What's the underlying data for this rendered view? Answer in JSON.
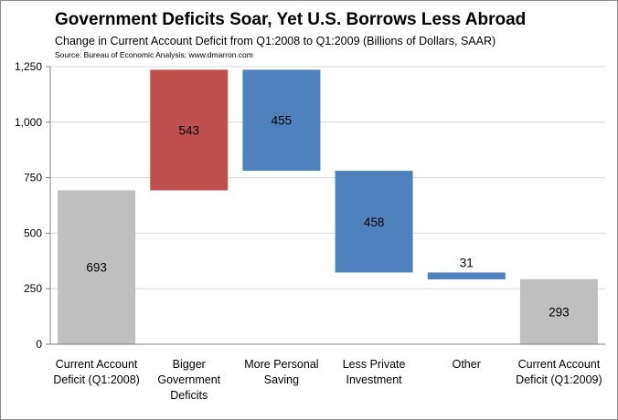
{
  "chart_data": {
    "type": "waterfall",
    "title": "Government Deficits Soar, Yet U.S. Borrows Less Abroad",
    "subtitle": "Change in Current Account Deficit from Q1:2008 to Q1:2009 (Billions of Dollars, SAAR)",
    "source": "Source: Bureau of Economic Analysis; www.dmarron.com",
    "xlabel": "",
    "ylabel": "",
    "ylim": [
      0,
      1250
    ],
    "yticks": [
      0,
      250,
      500,
      750,
      1000,
      1250
    ],
    "ytick_labels": [
      "0",
      "250",
      "500",
      "750",
      "1,000",
      "1,250"
    ],
    "grid": true,
    "legend": "none",
    "categories": [
      [
        "Current Account",
        "Deficit (Q1:2008)"
      ],
      [
        "Bigger",
        "Government",
        "Deficits"
      ],
      [
        "More Personal",
        "Saving"
      ],
      [
        "Less Private",
        "Investment"
      ],
      [
        "Other"
      ],
      [
        "Current Account",
        "Deficit (Q1:2009)"
      ]
    ],
    "bars": [
      {
        "start": 0,
        "end": 693,
        "label": "693",
        "color": "#bfbfbf"
      },
      {
        "start": 693,
        "end": 1236,
        "label": "543",
        "color": "#c0504d"
      },
      {
        "start": 781,
        "end": 1236,
        "label": "455",
        "color": "#4f81bd"
      },
      {
        "start": 323,
        "end": 781,
        "label": "458",
        "color": "#4f81bd"
      },
      {
        "start": 292,
        "end": 323,
        "label": "31",
        "color": "#4f81bd"
      },
      {
        "start": 0,
        "end": 293,
        "label": "293",
        "color": "#bfbfbf"
      }
    ]
  }
}
